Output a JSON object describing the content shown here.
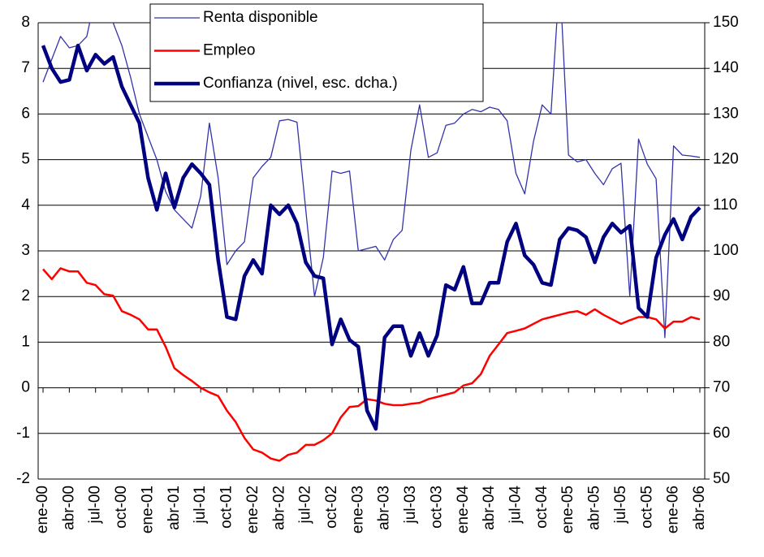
{
  "chart_data": {
    "type": "line",
    "categories": [
      "ene-00",
      null,
      null,
      "abr-00",
      null,
      null,
      "jul-00",
      null,
      null,
      "oct-00",
      null,
      null,
      "ene-01",
      null,
      null,
      "abr-01",
      null,
      null,
      "jul-01",
      null,
      null,
      "oct-01",
      null,
      null,
      "ene-02",
      null,
      null,
      "abr-02",
      null,
      null,
      "jul-02",
      null,
      null,
      "oct-02",
      null,
      null,
      "ene-03",
      null,
      null,
      "abr-03",
      null,
      null,
      "jul-03",
      null,
      null,
      "oct-03",
      null,
      null,
      "ene-04",
      null,
      null,
      "abr-04",
      null,
      null,
      "jul-04",
      null,
      null,
      "oct-04",
      null,
      null,
      "ene-05",
      null,
      null,
      "abr-05",
      null,
      null,
      "jul-05",
      null,
      null,
      "oct-05",
      null,
      null,
      "ene-06",
      null,
      null,
      "abr-06"
    ],
    "series": [
      {
        "name": "Renta disponible",
        "color": "#3333aa",
        "values": [
          6.7,
          7.2,
          7.7,
          7.45,
          7.5,
          7.7,
          8.6,
          8.7,
          8.0,
          7.5,
          6.8,
          6.0,
          5.5,
          5.0,
          4.3,
          3.9,
          3.7,
          3.5,
          4.2,
          5.8,
          4.6,
          2.7,
          3.0,
          3.2,
          4.6,
          4.85,
          5.05,
          5.85,
          5.88,
          5.82,
          3.9,
          2.0,
          2.85,
          4.75,
          4.7,
          4.75,
          3.0,
          3.05,
          3.1,
          2.8,
          3.25,
          3.45,
          5.2,
          6.2,
          5.05,
          5.15,
          5.75,
          5.8,
          6.0,
          6.1,
          6.05,
          6.15,
          6.1,
          5.85,
          4.7,
          4.25,
          5.4,
          6.2,
          6.0,
          9.0,
          5.1,
          4.95,
          5.0,
          4.7,
          4.45,
          4.8,
          4.92,
          2.0,
          5.45,
          4.9,
          4.58,
          1.1,
          5.3,
          5.1,
          5.08,
          5.05
        ]
      },
      {
        "name": "Empleo",
        "color": "#ff0000",
        "values": [
          2.6,
          2.38,
          2.62,
          2.55,
          2.55,
          2.3,
          2.25,
          2.05,
          2.02,
          1.68,
          1.6,
          1.5,
          1.28,
          1.28,
          0.9,
          0.43,
          0.28,
          0.15,
          0.0,
          -0.1,
          -0.18,
          -0.5,
          -0.75,
          -1.1,
          -1.35,
          -1.42,
          -1.55,
          -1.6,
          -1.47,
          -1.42,
          -1.25,
          -1.25,
          -1.15,
          -1.0,
          -0.65,
          -0.42,
          -0.4,
          -0.25,
          -0.28,
          -0.35,
          -0.38,
          -0.38,
          -0.35,
          -0.33,
          -0.25,
          -0.2,
          -0.15,
          -0.1,
          0.05,
          0.1,
          0.3,
          0.7,
          0.95,
          1.2,
          1.25,
          1.3,
          1.4,
          1.5,
          1.55,
          1.6,
          1.65,
          1.68,
          1.6,
          1.72,
          1.6,
          1.5,
          1.4,
          1.48,
          1.55,
          1.55,
          1.5,
          1.3,
          1.45,
          1.45,
          1.55,
          1.5
        ]
      },
      {
        "name": "Confianza (nivel, esc. dcha.)",
        "color": "#000080",
        "axis": "y2",
        "values": [
          145,
          140,
          137,
          137.5,
          145,
          139.5,
          143,
          141,
          142.5,
          136,
          132,
          128,
          116,
          109,
          117,
          109.5,
          116,
          119,
          117,
          114.5,
          98,
          85.5,
          85,
          94.5,
          98,
          95,
          110,
          108,
          110,
          106,
          97.5,
          94.5,
          94,
          79.5,
          85,
          80.5,
          79,
          65,
          61,
          81,
          83.5,
          83.5,
          77,
          82,
          77,
          81.5,
          92.5,
          91.5,
          96.5,
          88.5,
          88.5,
          93,
          93,
          102,
          106,
          99,
          97,
          93,
          92.5,
          102.5,
          105,
          104.5,
          103,
          97.5,
          103,
          106,
          104,
          105.5,
          87.5,
          85.5,
          98.5,
          103.5,
          107,
          102.5,
          107.5,
          109.5
        ]
      }
    ],
    "ylim": [
      -2,
      8
    ],
    "yticks": [
      -2,
      -1,
      0,
      1,
      2,
      3,
      4,
      5,
      6,
      7,
      8
    ],
    "y2lim": [
      50,
      150
    ],
    "y2ticks": [
      50,
      60,
      70,
      80,
      90,
      100,
      110,
      120,
      130,
      140,
      150
    ],
    "grid": true
  }
}
